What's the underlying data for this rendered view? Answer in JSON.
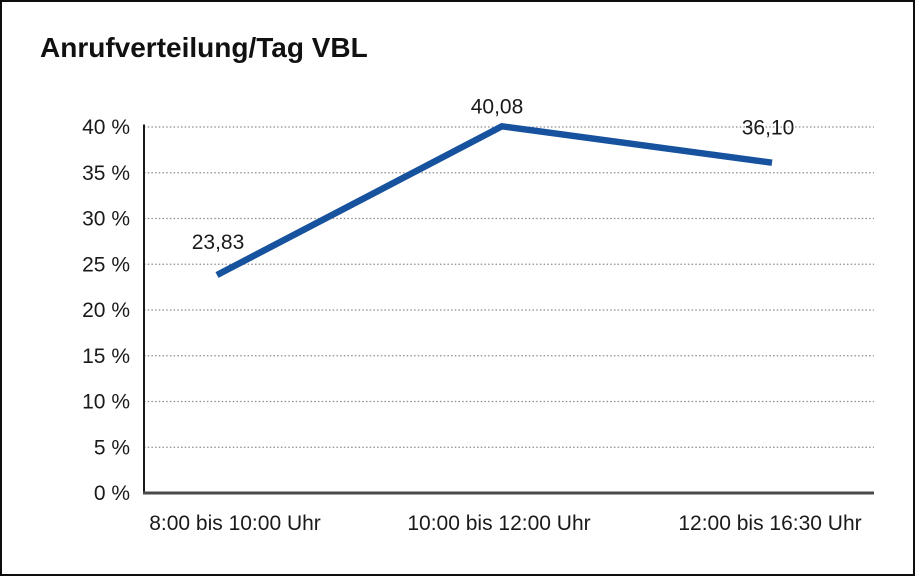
{
  "title": "Anrufverteilung/Tag VBL",
  "chart_data": {
    "type": "line",
    "title": "Anrufverteilung/Tag VBL",
    "categories": [
      "8:00 bis 10:00 Uhr",
      "10:00 bis 12:00 Uhr",
      "12:00 bis 16:30 Uhr"
    ],
    "series": [
      {
        "name": "Anrufverteilung/Tag VBL",
        "values": [
          23.83,
          40.08,
          36.1
        ]
      }
    ],
    "value_labels": [
      "23,83",
      "40,08",
      "36,10"
    ],
    "xlabel": "",
    "ylabel": "",
    "ylim": [
      0,
      40
    ],
    "y_ticks": [
      0,
      5,
      10,
      15,
      20,
      25,
      30,
      35,
      40
    ],
    "y_tick_labels": [
      "0 %",
      "5 %",
      "10 %",
      "15 %",
      "20 %",
      "25 %",
      "30 %",
      "35 %",
      "40 %"
    ],
    "grid": "horizontal-dotted",
    "legend": "none"
  },
  "colors": {
    "line": "#16529e",
    "grid": "#8c8c8c",
    "y_axis": "#1a1a1a",
    "baseline": "#4a4a4a",
    "text": "#1a1a1a",
    "frame": "#0d0d0d",
    "background": "#ffffff"
  }
}
